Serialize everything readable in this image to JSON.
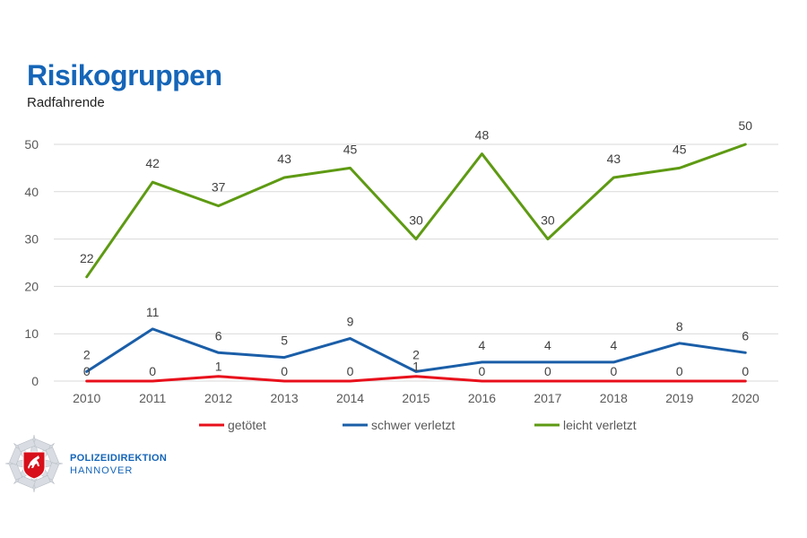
{
  "header": {
    "title": "Risikogruppen",
    "subtitle": "Radfahrende"
  },
  "logo": {
    "name": "POLIZEIDIREKTION",
    "city": "HANNOVER"
  },
  "colors": {
    "getoetet": "#e8101b",
    "schwer": "#1a5ea8",
    "leicht": "#5e9a13",
    "grid": "#d9d9d9",
    "brand": "#1565b8"
  },
  "chart_data": {
    "type": "line",
    "categories": [
      "2010",
      "2011",
      "2012",
      "2013",
      "2014",
      "2015",
      "2016",
      "2017",
      "2018",
      "2019",
      "2020"
    ],
    "ylim": [
      0,
      50
    ],
    "yticks": [
      0,
      10,
      20,
      30,
      40,
      50
    ],
    "grid": true,
    "legend_position": "bottom",
    "series": [
      {
        "name": "getötet",
        "values": [
          0,
          0,
          1,
          0,
          0,
          1,
          0,
          0,
          0,
          0,
          0
        ]
      },
      {
        "name": "schwer verletzt",
        "values": [
          2,
          11,
          6,
          5,
          9,
          2,
          4,
          4,
          4,
          8,
          6
        ]
      },
      {
        "name": "leicht verletzt",
        "values": [
          22,
          42,
          37,
          43,
          45,
          30,
          48,
          30,
          43,
          45,
          50
        ]
      }
    ]
  }
}
